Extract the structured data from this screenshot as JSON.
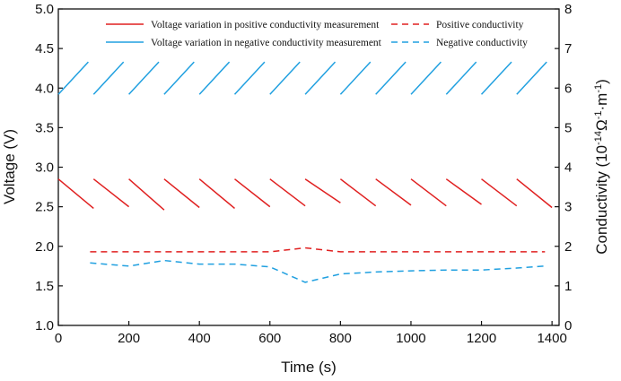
{
  "chart_data": {
    "type": "line",
    "title": "",
    "xlabel": "Time (s)",
    "ylabel_left": "Voltage (V)",
    "ylabel_right_parts": [
      "Conductivity (10",
      "-14",
      "Ω",
      "-1",
      "·m",
      "-1",
      ")"
    ],
    "xlim": [
      0,
      1420
    ],
    "ylim_left": [
      1.0,
      5.0
    ],
    "ylim_right": [
      0,
      8
    ],
    "x_ticks": [
      0,
      200,
      400,
      600,
      800,
      1000,
      1200,
      1400
    ],
    "x_tick_labels": [
      "0",
      "200",
      "400",
      "600",
      "800",
      "1000",
      "1200",
      "1400"
    ],
    "y_left_ticks": [
      1.0,
      1.5,
      2.0,
      2.5,
      3.0,
      3.5,
      4.0,
      4.5,
      5.0
    ],
    "y_left_tick_labels": [
      "1.0",
      "1.5",
      "2.0",
      "2.5",
      "3.0",
      "3.5",
      "4.0",
      "4.5",
      "5.0"
    ],
    "y_right_ticks": [
      0,
      1,
      2,
      3,
      4,
      5,
      6,
      7,
      8
    ],
    "y_right_tick_labels": [
      "0",
      "1",
      "2",
      "3",
      "4",
      "5",
      "6",
      "7",
      "8"
    ],
    "grid": false,
    "legend_position": "top",
    "legend": [
      "Voltage variation in positive conductivity measurement",
      "Positive conductivity",
      "Voltage variation in negative conductivity measurement",
      "Negative conductivity"
    ],
    "series": [
      {
        "name": "Voltage variation in positive conductivity measurement",
        "axis": "left",
        "style": "solid",
        "color": "#e02020",
        "segments": [
          [
            [
              0,
              2.85
            ],
            [
              100,
              2.48
            ]
          ],
          [
            [
              100,
              2.85
            ],
            [
              200,
              2.5
            ]
          ],
          [
            [
              200,
              2.85
            ],
            [
              300,
              2.46
            ]
          ],
          [
            [
              300,
              2.85
            ],
            [
              400,
              2.49
            ]
          ],
          [
            [
              400,
              2.85
            ],
            [
              500,
              2.48
            ]
          ],
          [
            [
              500,
              2.85
            ],
            [
              600,
              2.5
            ]
          ],
          [
            [
              600,
              2.85
            ],
            [
              700,
              2.51
            ]
          ],
          [
            [
              700,
              2.85
            ],
            [
              800,
              2.55
            ]
          ],
          [
            [
              800,
              2.85
            ],
            [
              900,
              2.51
            ]
          ],
          [
            [
              900,
              2.85
            ],
            [
              1000,
              2.52
            ]
          ],
          [
            [
              1000,
              2.85
            ],
            [
              1100,
              2.51
            ]
          ],
          [
            [
              1100,
              2.85
            ],
            [
              1200,
              2.53
            ]
          ],
          [
            [
              1200,
              2.85
            ],
            [
              1300,
              2.51
            ]
          ],
          [
            [
              1300,
              2.85
            ],
            [
              1400,
              2.49
            ]
          ]
        ]
      },
      {
        "name": "Voltage variation in negative conductivity measurement",
        "axis": "left",
        "style": "solid",
        "color": "#20a0e0",
        "segments": [
          [
            [
              0,
              3.92
            ],
            [
              85,
              4.33
            ]
          ],
          [
            [
              100,
              3.92
            ],
            [
              185,
              4.33
            ]
          ],
          [
            [
              200,
              3.92
            ],
            [
              285,
              4.33
            ]
          ],
          [
            [
              300,
              3.92
            ],
            [
              385,
              4.33
            ]
          ],
          [
            [
              400,
              3.92
            ],
            [
              485,
              4.33
            ]
          ],
          [
            [
              500,
              3.92
            ],
            [
              585,
              4.33
            ]
          ],
          [
            [
              600,
              3.92
            ],
            [
              685,
              4.33
            ]
          ],
          [
            [
              700,
              3.92
            ],
            [
              785,
              4.33
            ]
          ],
          [
            [
              800,
              3.92
            ],
            [
              885,
              4.33
            ]
          ],
          [
            [
              900,
              3.92
            ],
            [
              985,
              4.33
            ]
          ],
          [
            [
              1000,
              3.92
            ],
            [
              1085,
              4.33
            ]
          ],
          [
            [
              1100,
              3.92
            ],
            [
              1185,
              4.33
            ]
          ],
          [
            [
              1200,
              3.92
            ],
            [
              1285,
              4.33
            ]
          ],
          [
            [
              1300,
              3.92
            ],
            [
              1385,
              4.33
            ]
          ]
        ]
      },
      {
        "name": "Positive conductivity",
        "axis": "right",
        "style": "dashed",
        "color": "#e02020",
        "x": [
          90,
          200,
          300,
          400,
          500,
          600,
          700,
          800,
          900,
          1000,
          1100,
          1200,
          1300,
          1380
        ],
        "y": [
          1.86,
          1.86,
          1.86,
          1.86,
          1.86,
          1.86,
          1.96,
          1.86,
          1.86,
          1.86,
          1.86,
          1.86,
          1.86,
          1.86
        ]
      },
      {
        "name": "Negative conductivity",
        "axis": "right",
        "style": "dashed",
        "color": "#20a0e0",
        "x": [
          90,
          200,
          300,
          400,
          500,
          600,
          700,
          800,
          900,
          1000,
          1100,
          1200,
          1300,
          1380
        ],
        "y": [
          1.58,
          1.5,
          1.64,
          1.55,
          1.55,
          1.48,
          1.09,
          1.3,
          1.35,
          1.38,
          1.4,
          1.4,
          1.45,
          1.5
        ]
      }
    ]
  }
}
